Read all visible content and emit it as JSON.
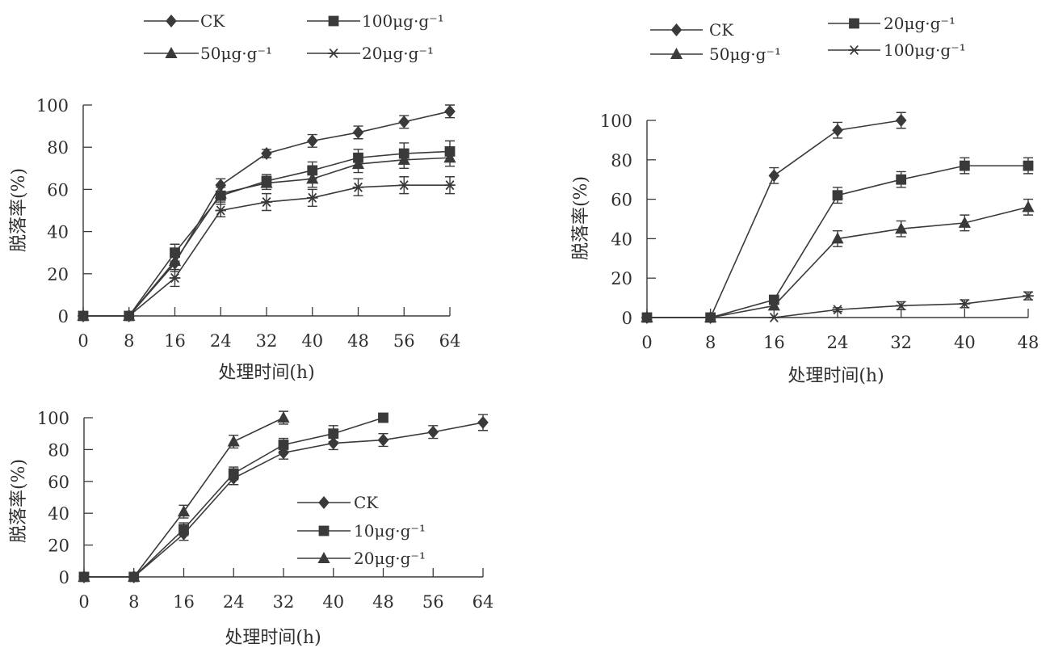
{
  "colors": {
    "ink": "#3a3a3a",
    "text": "#2f2f2f",
    "background": "#ffffff"
  },
  "chart_data": [
    {
      "id": "panel-a",
      "type": "line",
      "title": "",
      "xlabel": "处理时间(h)",
      "ylabel": "脱落率(%)",
      "x": [
        0,
        8,
        16,
        24,
        32,
        40,
        48,
        56,
        64
      ],
      "xticks": [
        "0",
        "8",
        "16",
        "24",
        "32",
        "40",
        "48",
        "56",
        "64"
      ],
      "yticks": [
        "0",
        "20",
        "40",
        "60",
        "80",
        "100"
      ],
      "xlim": [
        0,
        64
      ],
      "ylim": [
        0,
        100
      ],
      "legend_position": "top",
      "series": [
        {
          "name": "CK",
          "marker": "diamond",
          "values": [
            0,
            0,
            25,
            62,
            77,
            83,
            87,
            92,
            97
          ],
          "errors": [
            0,
            0,
            4,
            3,
            2,
            3,
            3,
            3,
            3
          ]
        },
        {
          "name": "100μg·g⁻¹",
          "marker": "square",
          "values": [
            0,
            0,
            30,
            57,
            64,
            69,
            75,
            77,
            78
          ],
          "errors": [
            0,
            0,
            4,
            4,
            3,
            4,
            4,
            5,
            5
          ]
        },
        {
          "name": "50μg·g⁻¹",
          "marker": "triangle",
          "values": [
            0,
            0,
            26,
            58,
            63,
            65,
            72,
            74,
            75
          ],
          "errors": [
            0,
            0,
            4,
            4,
            3,
            4,
            4,
            4,
            4
          ]
        },
        {
          "name": "20μg·g⁻¹",
          "marker": "star",
          "values": [
            0,
            0,
            18,
            50,
            54,
            56,
            61,
            62,
            62
          ],
          "errors": [
            0,
            0,
            4,
            3,
            4,
            4,
            4,
            4,
            4
          ]
        }
      ]
    },
    {
      "id": "panel-b",
      "type": "line",
      "title": "",
      "xlabel": "处理时间(h)",
      "ylabel": "脱落率(%)",
      "x": [
        0,
        8,
        16,
        24,
        32,
        40,
        48
      ],
      "xticks": [
        "0",
        "8",
        "16",
        "24",
        "32",
        "40",
        "48"
      ],
      "yticks": [
        "0",
        "20",
        "40",
        "60",
        "80",
        "100"
      ],
      "xlim": [
        0,
        48
      ],
      "ylim": [
        0,
        100
      ],
      "legend_position": "top",
      "series": [
        {
          "name": "CK",
          "marker": "diamond",
          "values": [
            0,
            0,
            72,
            95,
            100,
            null,
            null
          ],
          "errors": [
            0,
            0,
            4,
            4,
            4,
            null,
            null
          ]
        },
        {
          "name": "20μg·g⁻¹",
          "marker": "square",
          "values": [
            0,
            0,
            9,
            62,
            70,
            77,
            77
          ],
          "errors": [
            0,
            0,
            2,
            4,
            4,
            4,
            4
          ]
        },
        {
          "name": "50μg·g⁻¹",
          "marker": "triangle",
          "values": [
            0,
            0,
            6,
            40,
            45,
            48,
            56
          ],
          "errors": [
            0,
            0,
            2,
            4,
            4,
            4,
            4
          ]
        },
        {
          "name": "100μg·g⁻¹",
          "marker": "star",
          "values": [
            0,
            0,
            0,
            4,
            6,
            7,
            11
          ],
          "errors": [
            0,
            0,
            0,
            1,
            2,
            2,
            2
          ]
        }
      ]
    },
    {
      "id": "panel-c",
      "type": "line",
      "title": "",
      "xlabel": "处理时间(h)",
      "ylabel": "脱落率(%)",
      "x": [
        0,
        8,
        16,
        24,
        32,
        40,
        48,
        56,
        64
      ],
      "xticks": [
        "0",
        "8",
        "16",
        "24",
        "32",
        "40",
        "48",
        "56",
        "64"
      ],
      "yticks": [
        "0",
        "20",
        "40",
        "60",
        "80",
        "100"
      ],
      "xlim": [
        0,
        64
      ],
      "ylim": [
        0,
        100
      ],
      "legend_position": "center-right",
      "series": [
        {
          "name": "CK",
          "marker": "diamond",
          "values": [
            0,
            0,
            27,
            62,
            78,
            84,
            86,
            91,
            97
          ],
          "errors": [
            0,
            0,
            4,
            4,
            4,
            4,
            4,
            4,
            5
          ]
        },
        {
          "name": "10μg·g⁻¹",
          "marker": "square",
          "values": [
            0,
            0,
            30,
            65,
            83,
            90,
            100,
            null,
            null
          ],
          "errors": [
            0,
            0,
            4,
            4,
            4,
            5,
            0,
            null,
            null
          ]
        },
        {
          "name": "20μg·g⁻¹",
          "marker": "triangle",
          "values": [
            0,
            0,
            41,
            85,
            100,
            null,
            null,
            null,
            null
          ],
          "errors": [
            0,
            0,
            4,
            4,
            4,
            null,
            null,
            null,
            null
          ]
        }
      ]
    }
  ]
}
